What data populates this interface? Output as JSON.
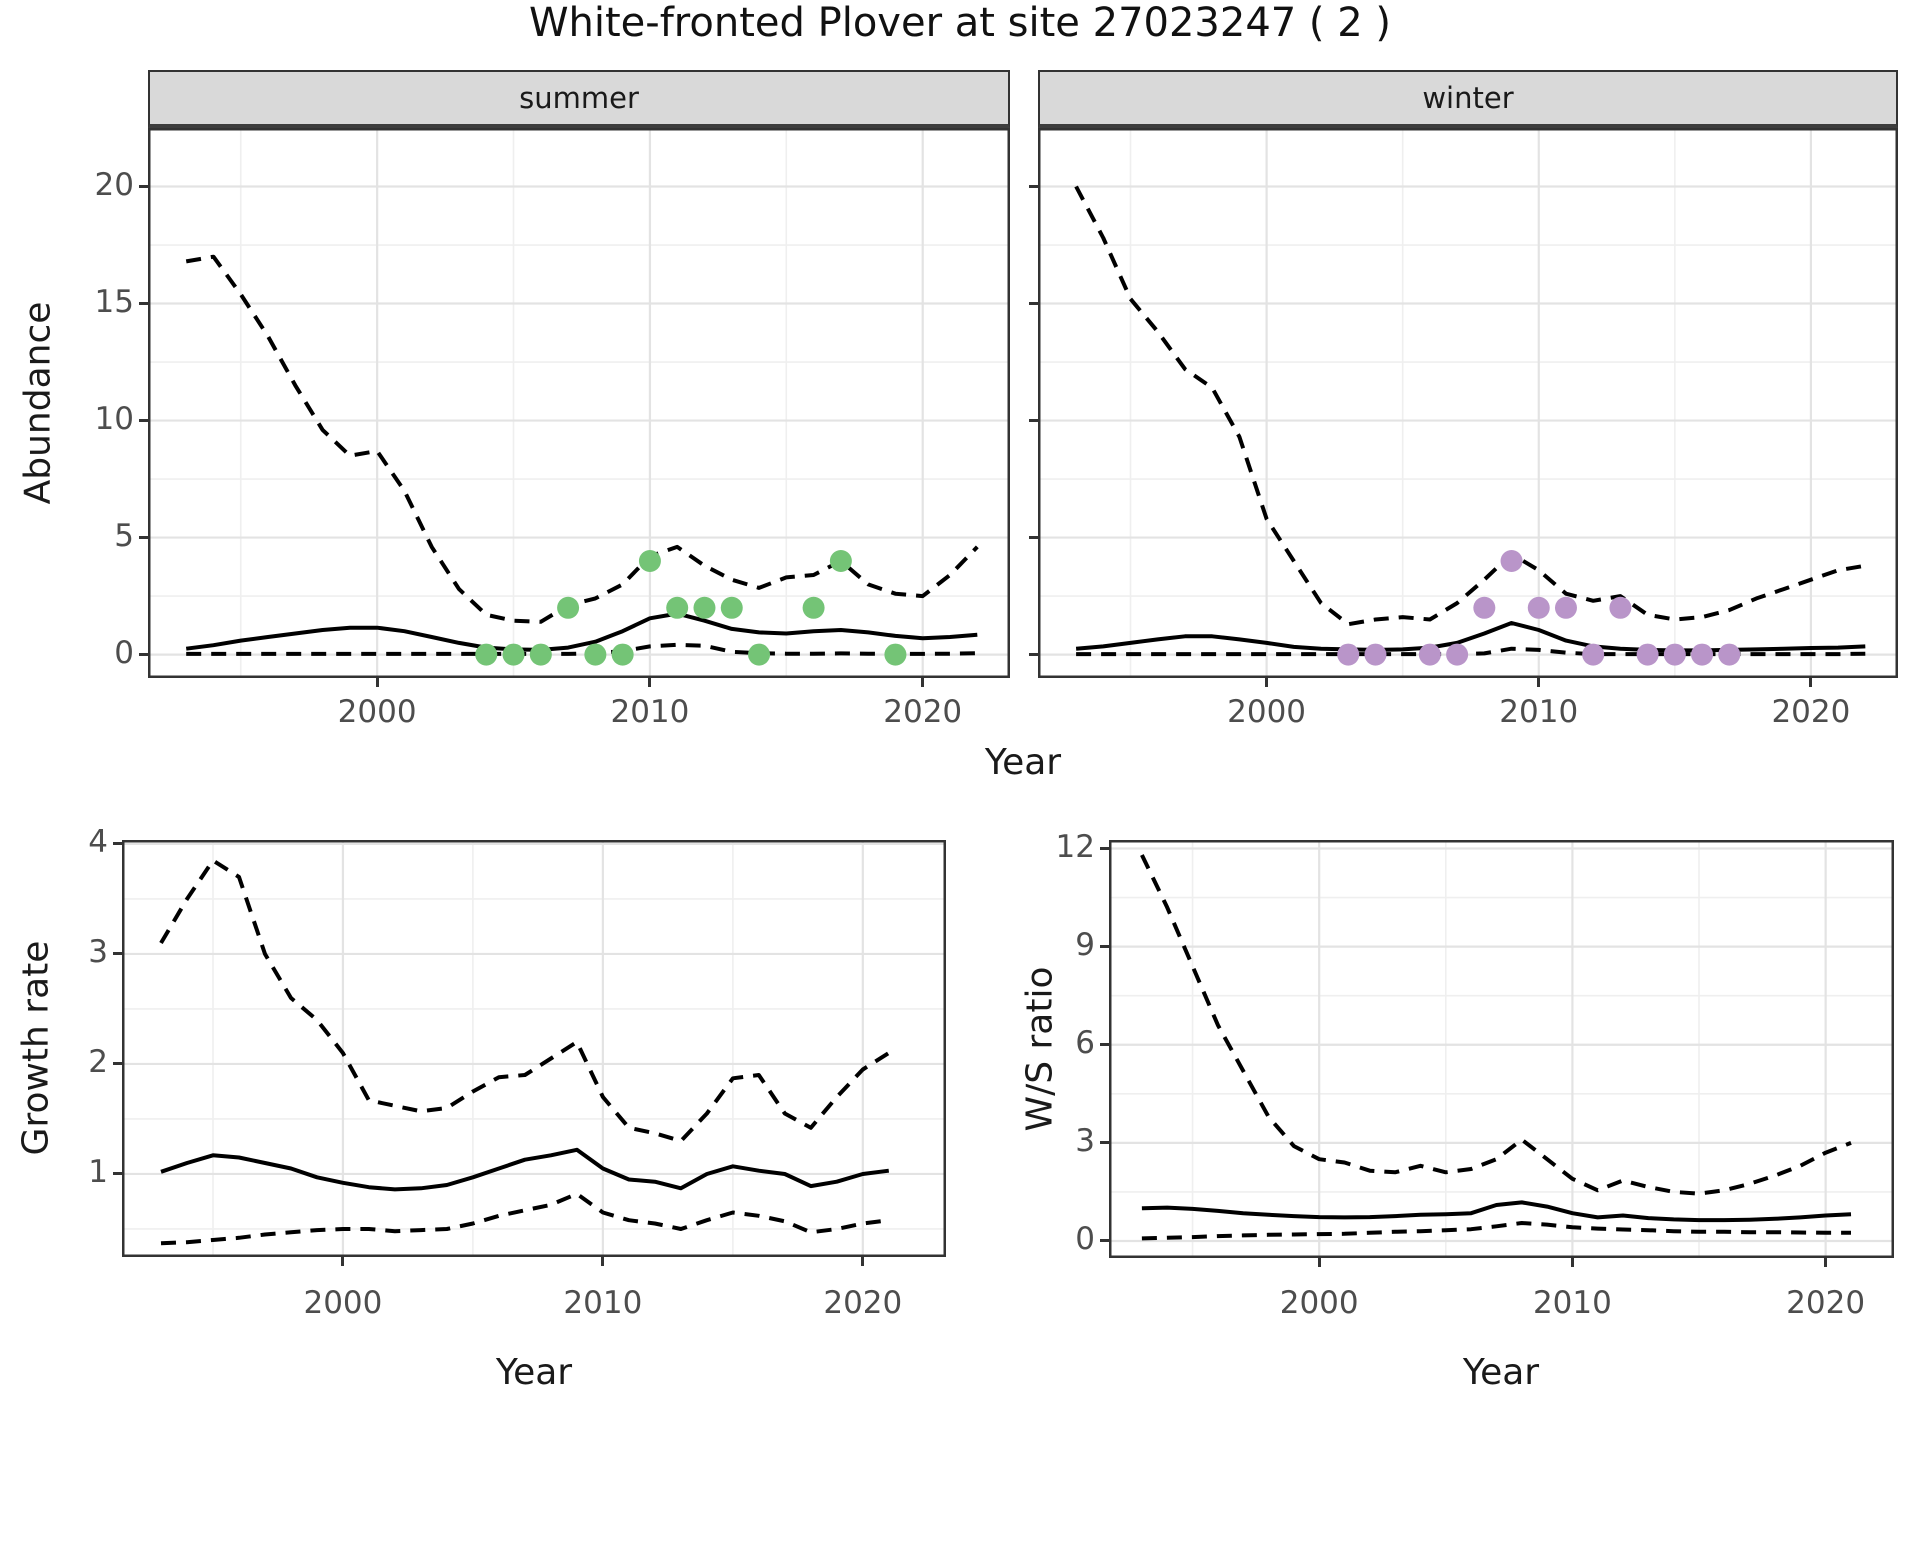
{
  "title": "White-fronted Plover at site 27023247 ( 2 )",
  "facets": [
    "summer",
    "winter"
  ],
  "axis_titles": {
    "x": "Year",
    "y_top": "Abundance",
    "y_growth": "Growth rate",
    "y_ws": "W/S ratio"
  },
  "colors": {
    "summer_point": "#74C476",
    "winter_point": "#B995C9",
    "line": "#000000",
    "strip_bg": "#d9d9d9",
    "panel_border": "#333333",
    "grid_major": "#e3e3e3",
    "grid_minor": "#efefef",
    "tick_text": "#4d4d4d",
    "title_text": "#111111"
  },
  "chart_data": [
    {
      "type": "line",
      "facet": "summer",
      "xlabel": "Year",
      "ylabel": "Abundance",
      "x_ticks": [
        2000,
        2010,
        2020
      ],
      "x_minor": [
        1995,
        2005,
        2015
      ],
      "y_ticks": [
        0,
        5,
        10,
        15,
        20
      ],
      "y_minor": [
        2.5,
        7.5,
        12.5,
        17.5
      ],
      "xlim": [
        1991.6,
        2023.2
      ],
      "ylim": [
        -1.0,
        22.5
      ],
      "x": [
        1993,
        1994,
        1995,
        1996,
        1997,
        1998,
        1999,
        2000,
        2001,
        2002,
        2003,
        2004,
        2005,
        2006,
        2007,
        2008,
        2009,
        2010,
        2011,
        2012,
        2013,
        2014,
        2015,
        2016,
        2017,
        2018,
        2019,
        2020,
        2021,
        2022
      ],
      "series": [
        {
          "name": "upper_ci",
          "style": "dashed",
          "values": [
            16.8,
            17,
            15.4,
            13.6,
            11.5,
            9.6,
            8.5,
            8.7,
            7,
            4.6,
            2.8,
            1.7,
            1.45,
            1.4,
            2.1,
            2.4,
            3,
            4.2,
            4.6,
            3.8,
            3.2,
            2.85,
            3.3,
            3.4,
            4,
            3,
            2.6,
            2.5,
            3.4,
            4.6
          ]
        },
        {
          "name": "median",
          "style": "solid",
          "values": [
            0.25,
            0.4,
            0.6,
            0.75,
            0.9,
            1.05,
            1.15,
            1.15,
            1,
            0.75,
            0.5,
            0.3,
            0.22,
            0.2,
            0.3,
            0.55,
            1,
            1.55,
            1.75,
            1.45,
            1.1,
            0.95,
            0.9,
            1,
            1.05,
            0.95,
            0.8,
            0.7,
            0.75,
            0.85
          ]
        },
        {
          "name": "lower_ci",
          "style": "dashed",
          "values": [
            0.03,
            0.03,
            0.03,
            0.03,
            0.03,
            0.03,
            0.03,
            0.03,
            0.03,
            0.03,
            0.03,
            0.03,
            0.03,
            0.03,
            0.03,
            0.06,
            0.15,
            0.35,
            0.42,
            0.38,
            0.12,
            0.06,
            0.04,
            0.04,
            0.05,
            0.04,
            0.03,
            0.03,
            0.04,
            0.06
          ]
        }
      ],
      "points": {
        "years": [
          2004,
          2005,
          2006,
          2007,
          2008,
          2009,
          2010,
          2011,
          2012,
          2013,
          2014,
          2016,
          2017,
          2019
        ],
        "values": [
          0,
          0,
          0,
          2,
          0,
          0,
          4,
          2,
          2,
          2,
          0,
          2,
          4,
          0
        ]
      }
    },
    {
      "type": "line",
      "facet": "winter",
      "xlabel": "Year",
      "ylabel": "Abundance",
      "x_ticks": [
        2000,
        2010,
        2020
      ],
      "x_minor": [
        1995,
        2005,
        2015
      ],
      "y_ticks": [
        0,
        5,
        10,
        15,
        20
      ],
      "y_minor": [
        2.5,
        7.5,
        12.5,
        17.5
      ],
      "xlim": [
        1991.6,
        2023.2
      ],
      "ylim": [
        -1.0,
        22.5
      ],
      "x": [
        1993,
        1994,
        1995,
        1996,
        1997,
        1998,
        1999,
        2000,
        2001,
        2002,
        2003,
        2004,
        2005,
        2006,
        2007,
        2008,
        2009,
        2010,
        2011,
        2012,
        2013,
        2014,
        2015,
        2016,
        2017,
        2018,
        2019,
        2020,
        2021,
        2022
      ],
      "series": [
        {
          "name": "upper_ci",
          "style": "dashed",
          "values": [
            20,
            17.8,
            15.2,
            13.8,
            12.2,
            11.4,
            9.3,
            5.8,
            4,
            2.2,
            1.3,
            1.5,
            1.6,
            1.5,
            2.2,
            3.2,
            4.3,
            3.6,
            2.6,
            2.3,
            2.5,
            1.7,
            1.5,
            1.6,
            1.9,
            2.4,
            2.8,
            3.2,
            3.6,
            3.8
          ]
        },
        {
          "name": "median",
          "style": "solid",
          "values": [
            0.25,
            0.35,
            0.5,
            0.65,
            0.78,
            0.78,
            0.65,
            0.5,
            0.33,
            0.25,
            0.22,
            0.2,
            0.22,
            0.3,
            0.5,
            0.9,
            1.35,
            1.05,
            0.6,
            0.35,
            0.25,
            0.2,
            0.18,
            0.18,
            0.2,
            0.22,
            0.25,
            0.28,
            0.3,
            0.35
          ]
        },
        {
          "name": "lower_ci",
          "style": "dashed",
          "values": [
            0.02,
            0.02,
            0.02,
            0.02,
            0.02,
            0.02,
            0.02,
            0.02,
            0.02,
            0.02,
            0.02,
            0.02,
            0.02,
            0.02,
            0.02,
            0.05,
            0.25,
            0.2,
            0.08,
            0.02,
            0.02,
            0.02,
            0.02,
            0.02,
            0.02,
            0.02,
            0.02,
            0.02,
            0.02,
            0.04
          ]
        }
      ],
      "points": {
        "years": [
          2003,
          2004,
          2006,
          2007,
          2008,
          2009,
          2010,
          2011,
          2012,
          2013,
          2014,
          2015,
          2016,
          2017
        ],
        "values": [
          0,
          0,
          0,
          0,
          2,
          4,
          2,
          2,
          0,
          2,
          0,
          0,
          0,
          0
        ]
      }
    },
    {
      "type": "line",
      "facet": "",
      "xlabel": "Year",
      "ylabel": "Growth rate",
      "x_ticks": [
        2000,
        2010,
        2020
      ],
      "x_minor": [
        1995,
        2005,
        2015
      ],
      "y_ticks": [
        1,
        2,
        3,
        4
      ],
      "y_minor": [
        0.5,
        1.5,
        2.5,
        3.5
      ],
      "xlim": [
        1991.5,
        2023.2
      ],
      "ylim": [
        0.245,
        4.036
      ],
      "x": [
        1993,
        1994,
        1995,
        1996,
        1997,
        1998,
        1999,
        2000,
        2001,
        2002,
        2003,
        2004,
        2005,
        2006,
        2007,
        2008,
        2009,
        2010,
        2011,
        2012,
        2013,
        2014,
        2015,
        2016,
        2017,
        2018,
        2019,
        2020,
        2021
      ],
      "series": [
        {
          "name": "upper_ci",
          "style": "dashed",
          "values": [
            3.1,
            3.5,
            3.85,
            3.7,
            3,
            2.6,
            2.4,
            2.1,
            1.67,
            1.62,
            1.57,
            1.6,
            1.75,
            1.88,
            1.9,
            2.05,
            2.2,
            1.7,
            1.42,
            1.37,
            1.3,
            1.55,
            1.87,
            1.9,
            1.55,
            1.42,
            1.7,
            1.95,
            2.1
          ]
        },
        {
          "name": "median",
          "style": "solid",
          "values": [
            1.02,
            1.1,
            1.17,
            1.15,
            1.1,
            1.05,
            0.97,
            0.92,
            0.88,
            0.86,
            0.87,
            0.9,
            0.97,
            1.05,
            1.13,
            1.17,
            1.22,
            1.05,
            0.95,
            0.93,
            0.87,
            1,
            1.07,
            1.03,
            1,
            0.89,
            0.93,
            1,
            1.03
          ]
        },
        {
          "name": "lower_ci",
          "style": "dashed",
          "values": [
            0.37,
            0.38,
            0.4,
            0.42,
            0.45,
            0.47,
            0.49,
            0.5,
            0.5,
            0.48,
            0.49,
            0.5,
            0.55,
            0.62,
            0.67,
            0.72,
            0.82,
            0.65,
            0.58,
            0.55,
            0.5,
            0.58,
            0.65,
            0.62,
            0.57,
            0.47,
            0.5,
            0.55,
            0.58
          ]
        }
      ],
      "points": {
        "years": [],
        "values": []
      }
    },
    {
      "type": "line",
      "facet": "",
      "xlabel": "Year",
      "ylabel": "W/S ratio",
      "x_ticks": [
        2000,
        2010,
        2020
      ],
      "x_minor": [
        1995,
        2005,
        2015
      ],
      "y_ticks": [
        0,
        3,
        6,
        9,
        12
      ],
      "y_minor": [
        1.5,
        4.5,
        7.5,
        10.5
      ],
      "xlim": [
        1991.7,
        2022.7
      ],
      "ylim": [
        -0.52,
        12.26
      ],
      "x": [
        1993,
        1994,
        1995,
        1996,
        1997,
        1998,
        1999,
        2000,
        2001,
        2002,
        2003,
        2004,
        2005,
        2006,
        2007,
        2008,
        2009,
        2010,
        2011,
        2012,
        2013,
        2014,
        2015,
        2016,
        2017,
        2018,
        2019,
        2020,
        2021
      ],
      "series": [
        {
          "name": "upper_ci",
          "style": "dashed",
          "values": [
            11.8,
            10.2,
            8.4,
            6.6,
            5.2,
            3.8,
            2.9,
            2.5,
            2.4,
            2.15,
            2.1,
            2.3,
            2.1,
            2.2,
            2.5,
            3.1,
            2.5,
            1.9,
            1.55,
            1.85,
            1.65,
            1.5,
            1.45,
            1.55,
            1.75,
            2,
            2.3,
            2.7,
            3
          ]
        },
        {
          "name": "median",
          "style": "solid",
          "values": [
            1,
            1.02,
            0.98,
            0.92,
            0.85,
            0.8,
            0.76,
            0.73,
            0.72,
            0.73,
            0.76,
            0.8,
            0.82,
            0.85,
            1.1,
            1.18,
            1.05,
            0.85,
            0.72,
            0.78,
            0.7,
            0.66,
            0.64,
            0.64,
            0.65,
            0.68,
            0.72,
            0.78,
            0.82
          ]
        },
        {
          "name": "lower_ci",
          "style": "dashed",
          "values": [
            0.08,
            0.1,
            0.12,
            0.15,
            0.17,
            0.19,
            0.2,
            0.21,
            0.22,
            0.25,
            0.28,
            0.3,
            0.33,
            0.36,
            0.45,
            0.55,
            0.5,
            0.42,
            0.38,
            0.35,
            0.33,
            0.3,
            0.28,
            0.28,
            0.27,
            0.27,
            0.26,
            0.25,
            0.25
          ]
        }
      ],
      "points": {
        "years": [],
        "values": []
      }
    }
  ]
}
